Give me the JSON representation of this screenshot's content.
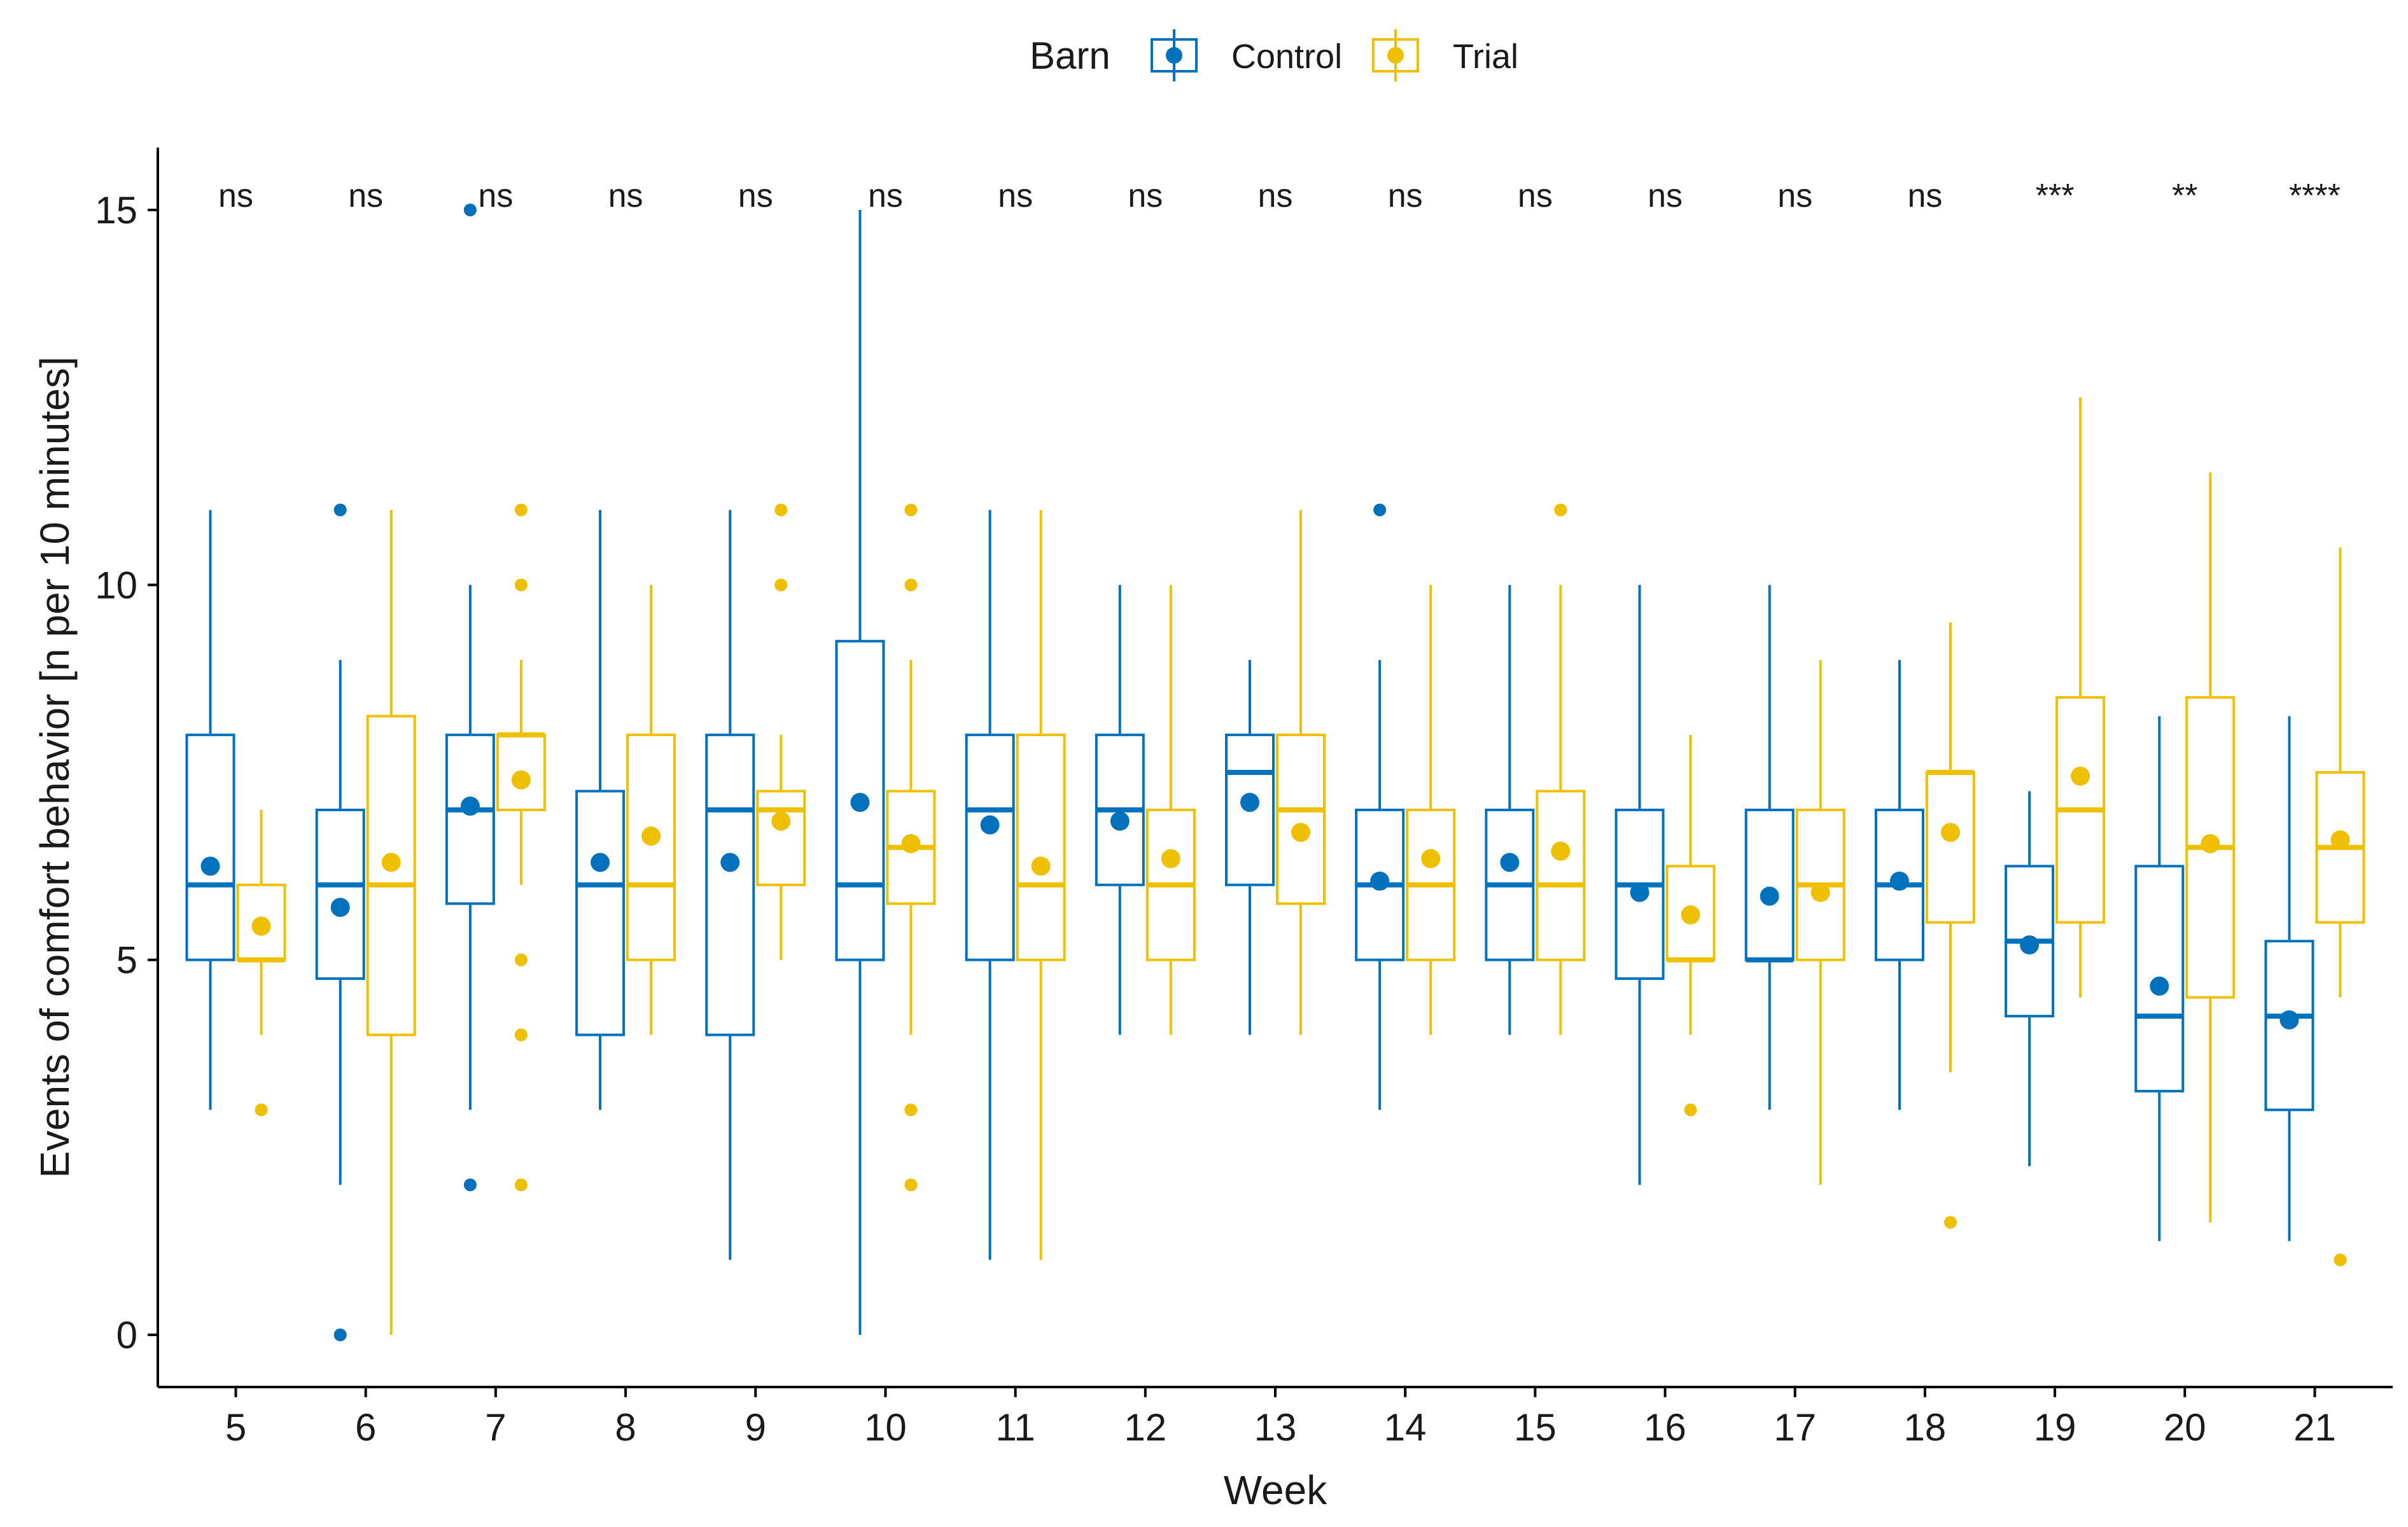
{
  "chart_data": {
    "type": "boxplot",
    "title": "",
    "xlabel": "Week",
    "ylabel": "Events of comfort behavior [n per 10 minutes]",
    "ylim": [
      -0.7,
      15.7
    ],
    "y_ticks": [
      0,
      5,
      10,
      15
    ],
    "grid": false,
    "legend": {
      "title": "Barn",
      "position": "top-center",
      "entries": [
        "Control",
        "Trial"
      ]
    },
    "categories": [
      "5",
      "6",
      "7",
      "8",
      "9",
      "10",
      "11",
      "12",
      "13",
      "14",
      "15",
      "16",
      "17",
      "18",
      "19",
      "20",
      "21"
    ],
    "significance": [
      "ns",
      "ns",
      "ns",
      "ns",
      "ns",
      "ns",
      "ns",
      "ns",
      "ns",
      "ns",
      "ns",
      "ns",
      "ns",
      "ns",
      "***",
      "**",
      "****"
    ],
    "series": [
      {
        "name": "Control",
        "color": "#0072BD",
        "boxes": [
          {
            "min": 3,
            "q1": 5,
            "median": 6,
            "q3": 8,
            "max": 11,
            "mean": 6.25,
            "outliers": []
          },
          {
            "min": 2,
            "q1": 4.75,
            "median": 6,
            "q3": 7,
            "max": 9,
            "mean": 5.7,
            "outliers": [
              11,
              0
            ]
          },
          {
            "min": 3,
            "q1": 5.75,
            "median": 7,
            "q3": 8,
            "max": 10,
            "mean": 7.05,
            "outliers": [
              15,
              2
            ]
          },
          {
            "min": 3,
            "q1": 4,
            "median": 6,
            "q3": 7.25,
            "max": 11,
            "mean": 6.3,
            "outliers": []
          },
          {
            "min": 1,
            "q1": 4,
            "median": 7,
            "q3": 8,
            "max": 11,
            "mean": 6.3,
            "outliers": []
          },
          {
            "min": 0,
            "q1": 5,
            "median": 6,
            "q3": 9.25,
            "max": 15,
            "mean": 7.1,
            "outliers": []
          },
          {
            "min": 1,
            "q1": 5,
            "median": 7,
            "q3": 8,
            "max": 11,
            "mean": 6.8,
            "outliers": []
          },
          {
            "min": 4,
            "q1": 6,
            "median": 7,
            "q3": 8,
            "max": 10,
            "mean": 6.85,
            "outliers": []
          },
          {
            "min": 4,
            "q1": 6,
            "median": 7.5,
            "q3": 8,
            "max": 9,
            "mean": 7.1,
            "outliers": []
          },
          {
            "min": 3,
            "q1": 5,
            "median": 6,
            "q3": 7,
            "max": 9,
            "mean": 6.05,
            "outliers": [
              11
            ]
          },
          {
            "min": 4,
            "q1": 5,
            "median": 6,
            "q3": 7,
            "max": 10,
            "mean": 6.3,
            "outliers": []
          },
          {
            "min": 2,
            "q1": 4.75,
            "median": 6,
            "q3": 7,
            "max": 10,
            "mean": 5.9,
            "outliers": []
          },
          {
            "min": 3,
            "q1": 5,
            "median": 5,
            "q3": 7,
            "max": 10,
            "mean": 5.85,
            "outliers": []
          },
          {
            "min": 3,
            "q1": 5,
            "median": 6,
            "q3": 7,
            "max": 9,
            "mean": 6.05,
            "outliers": []
          },
          {
            "min": 2.25,
            "q1": 4.25,
            "median": 5.25,
            "q3": 6.25,
            "max": 7.25,
            "mean": 5.2,
            "outliers": []
          },
          {
            "min": 1.25,
            "q1": 3.25,
            "median": 4.25,
            "q3": 6.25,
            "max": 8.25,
            "mean": 4.65,
            "outliers": []
          },
          {
            "min": 1.25,
            "q1": 3,
            "median": 4.25,
            "q3": 5.25,
            "max": 8.25,
            "mean": 4.2,
            "outliers": []
          }
        ]
      },
      {
        "name": "Trial",
        "color": "#EFC000",
        "boxes": [
          {
            "min": 4,
            "q1": 5,
            "median": 5,
            "q3": 6,
            "max": 7,
            "mean": 5.45,
            "outliers": [
              3
            ]
          },
          {
            "min": 0,
            "q1": 4,
            "median": 6,
            "q3": 8.25,
            "max": 11,
            "mean": 6.3,
            "outliers": []
          },
          {
            "min": 6,
            "q1": 7,
            "median": 8,
            "q3": 8,
            "max": 9,
            "mean": 7.4,
            "outliers": [
              11,
              10,
              5,
              4,
              2
            ]
          },
          {
            "min": 4,
            "q1": 5,
            "median": 6,
            "q3": 8,
            "max": 10,
            "mean": 6.65,
            "outliers": []
          },
          {
            "min": 5,
            "q1": 6,
            "median": 7,
            "q3": 7.25,
            "max": 8,
            "mean": 6.85,
            "outliers": [
              11,
              10
            ]
          },
          {
            "min": 4,
            "q1": 5.75,
            "median": 6.5,
            "q3": 7.25,
            "max": 9,
            "mean": 6.55,
            "outliers": [
              11,
              10,
              3,
              2
            ]
          },
          {
            "min": 1,
            "q1": 5,
            "median": 6,
            "q3": 8,
            "max": 11,
            "mean": 6.25,
            "outliers": []
          },
          {
            "min": 4,
            "q1": 5,
            "median": 6,
            "q3": 7,
            "max": 10,
            "mean": 6.35,
            "outliers": []
          },
          {
            "min": 4,
            "q1": 5.75,
            "median": 7,
            "q3": 8,
            "max": 11,
            "mean": 6.7,
            "outliers": []
          },
          {
            "min": 4,
            "q1": 5,
            "median": 6,
            "q3": 7,
            "max": 10,
            "mean": 6.35,
            "outliers": []
          },
          {
            "min": 4,
            "q1": 5,
            "median": 6,
            "q3": 7.25,
            "max": 10,
            "mean": 6.45,
            "outliers": [
              11
            ]
          },
          {
            "min": 4,
            "q1": 5,
            "median": 5,
            "q3": 6.25,
            "max": 8,
            "mean": 5.6,
            "outliers": [
              3
            ]
          },
          {
            "min": 2,
            "q1": 5,
            "median": 6,
            "q3": 7,
            "max": 9,
            "mean": 5.9,
            "outliers": []
          },
          {
            "min": 3.5,
            "q1": 5.5,
            "median": 7.5,
            "q3": 7.5,
            "max": 9.5,
            "mean": 6.7,
            "outliers": [
              1.5
            ]
          },
          {
            "min": 4.5,
            "q1": 5.5,
            "median": 7,
            "q3": 8.5,
            "max": 12.5,
            "mean": 7.45,
            "outliers": []
          },
          {
            "min": 1.5,
            "q1": 4.5,
            "median": 6.5,
            "q3": 8.5,
            "max": 11.5,
            "mean": 6.55,
            "outliers": []
          },
          {
            "min": 4.5,
            "q1": 5.5,
            "median": 6.5,
            "q3": 7.5,
            "max": 10.5,
            "mean": 6.6,
            "outliers": [
              1
            ]
          }
        ]
      }
    ]
  }
}
